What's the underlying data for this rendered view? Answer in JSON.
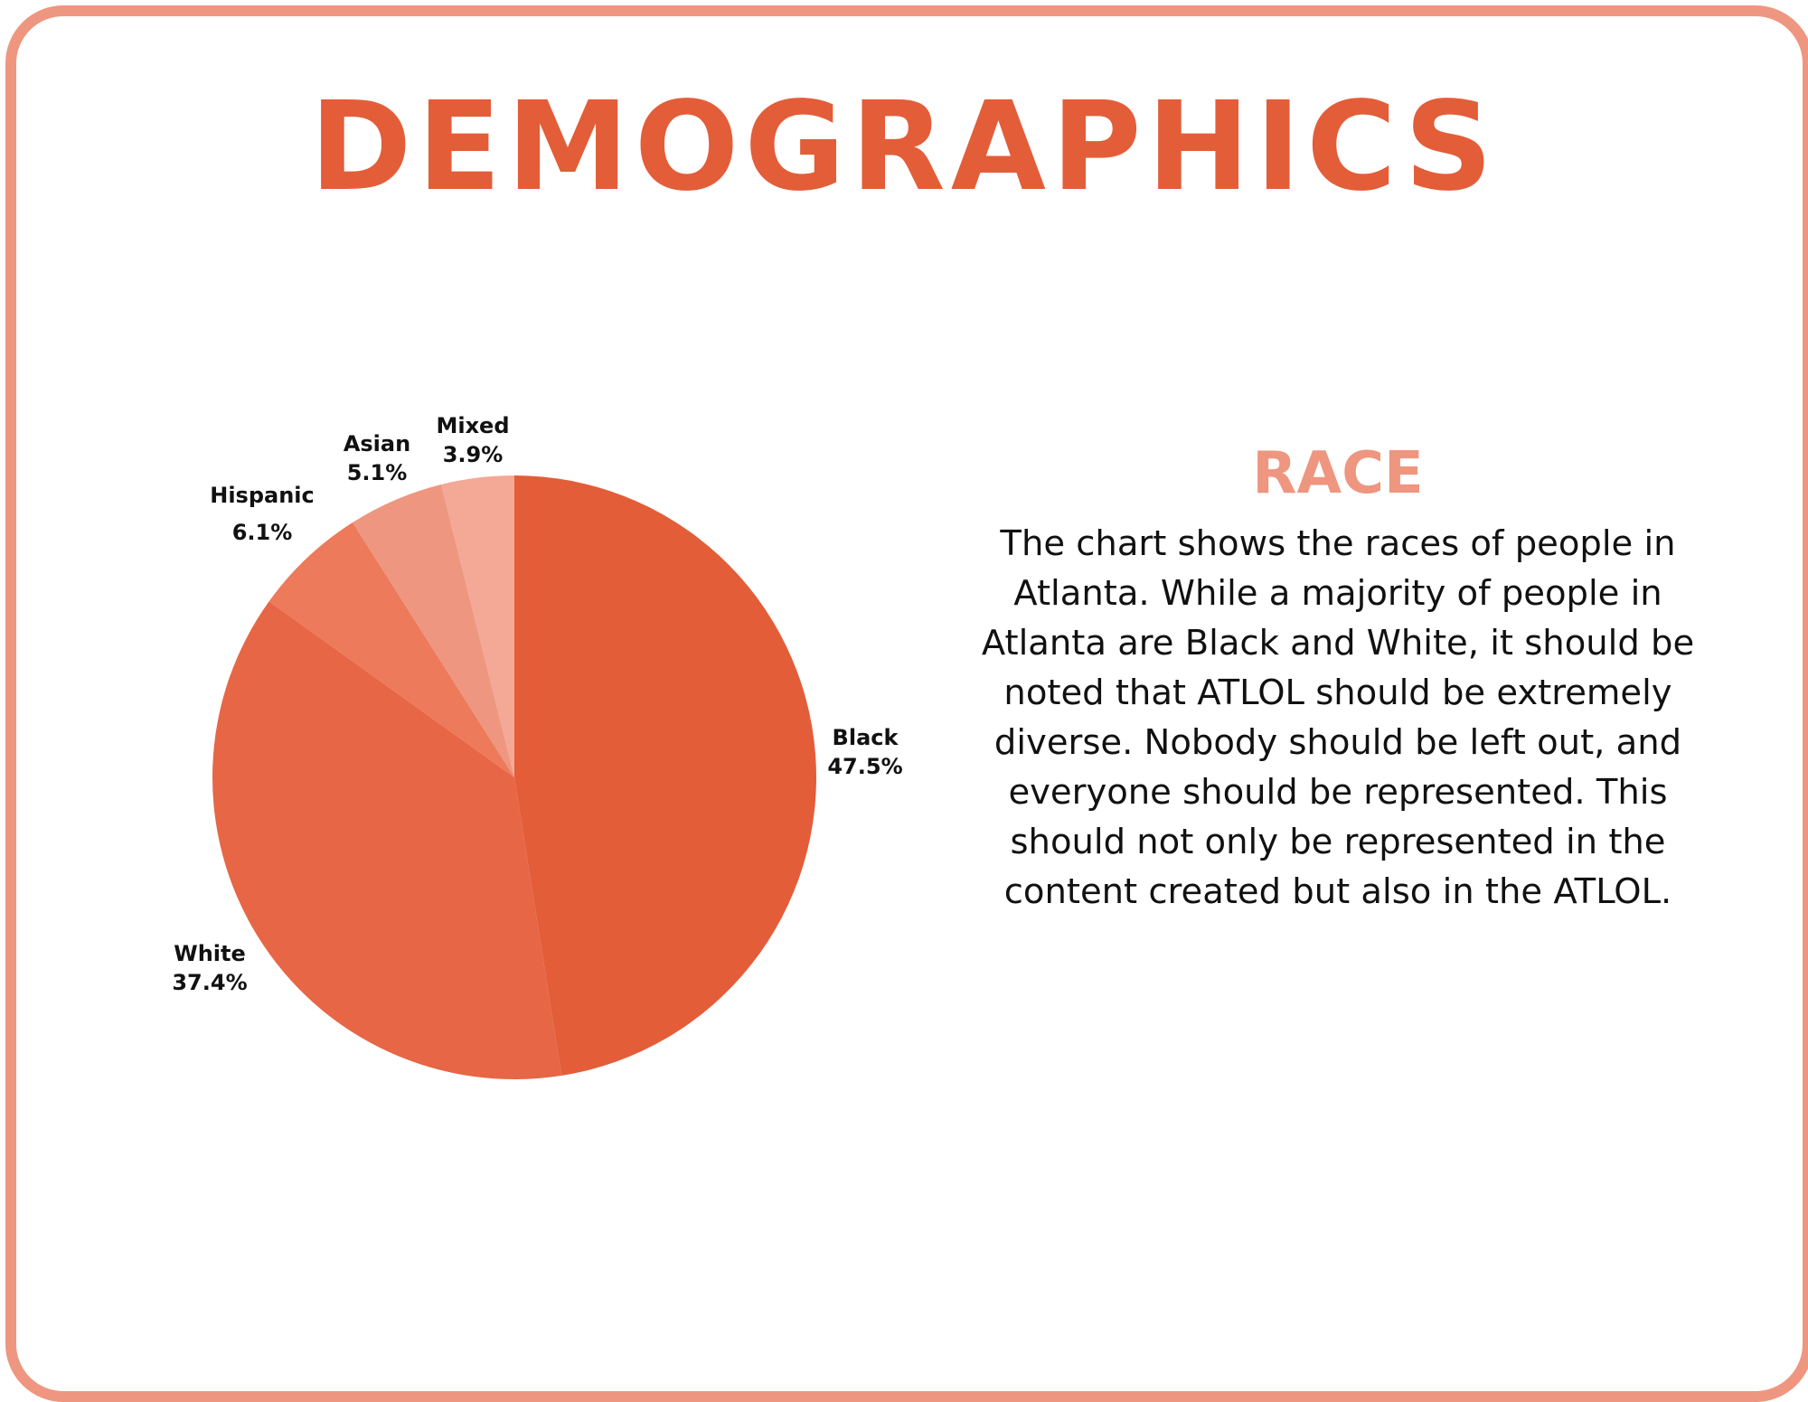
{
  "page": {
    "title": "DEMOGRAPHICS",
    "accent_color": "#e35d39",
    "frame_color": "#ee967f"
  },
  "section": {
    "heading": "RACE",
    "description": "The chart shows the races of people in Atlanta. While a majority of people in Atlanta are Black and White, it should be noted that ATLOL should be extremely diverse. Nobody should be left out, and everyone should be represented. This should not only be represented in the content created but also in the ATLOL."
  },
  "chart_data": {
    "type": "pie",
    "title": "",
    "slices": [
      {
        "label": "Black",
        "value": 47.5,
        "value_label": "47.5%",
        "color": "#e35d39"
      },
      {
        "label": "White",
        "value": 37.4,
        "value_label": "37.4%",
        "color": "#e66646"
      },
      {
        "label": "Hispanic",
        "value": 6.1,
        "value_label": "6.1%",
        "color": "#ed7a5a"
      },
      {
        "label": "Asian",
        "value": 5.1,
        "value_label": "5.1%",
        "color": "#ee967f"
      },
      {
        "label": "Mixed",
        "value": 3.9,
        "value_label": "3.9%",
        "color": "#f4a896"
      }
    ],
    "start": "12 o'clock",
    "direction": "clockwise",
    "legend": "none",
    "labels": "outside slices"
  }
}
